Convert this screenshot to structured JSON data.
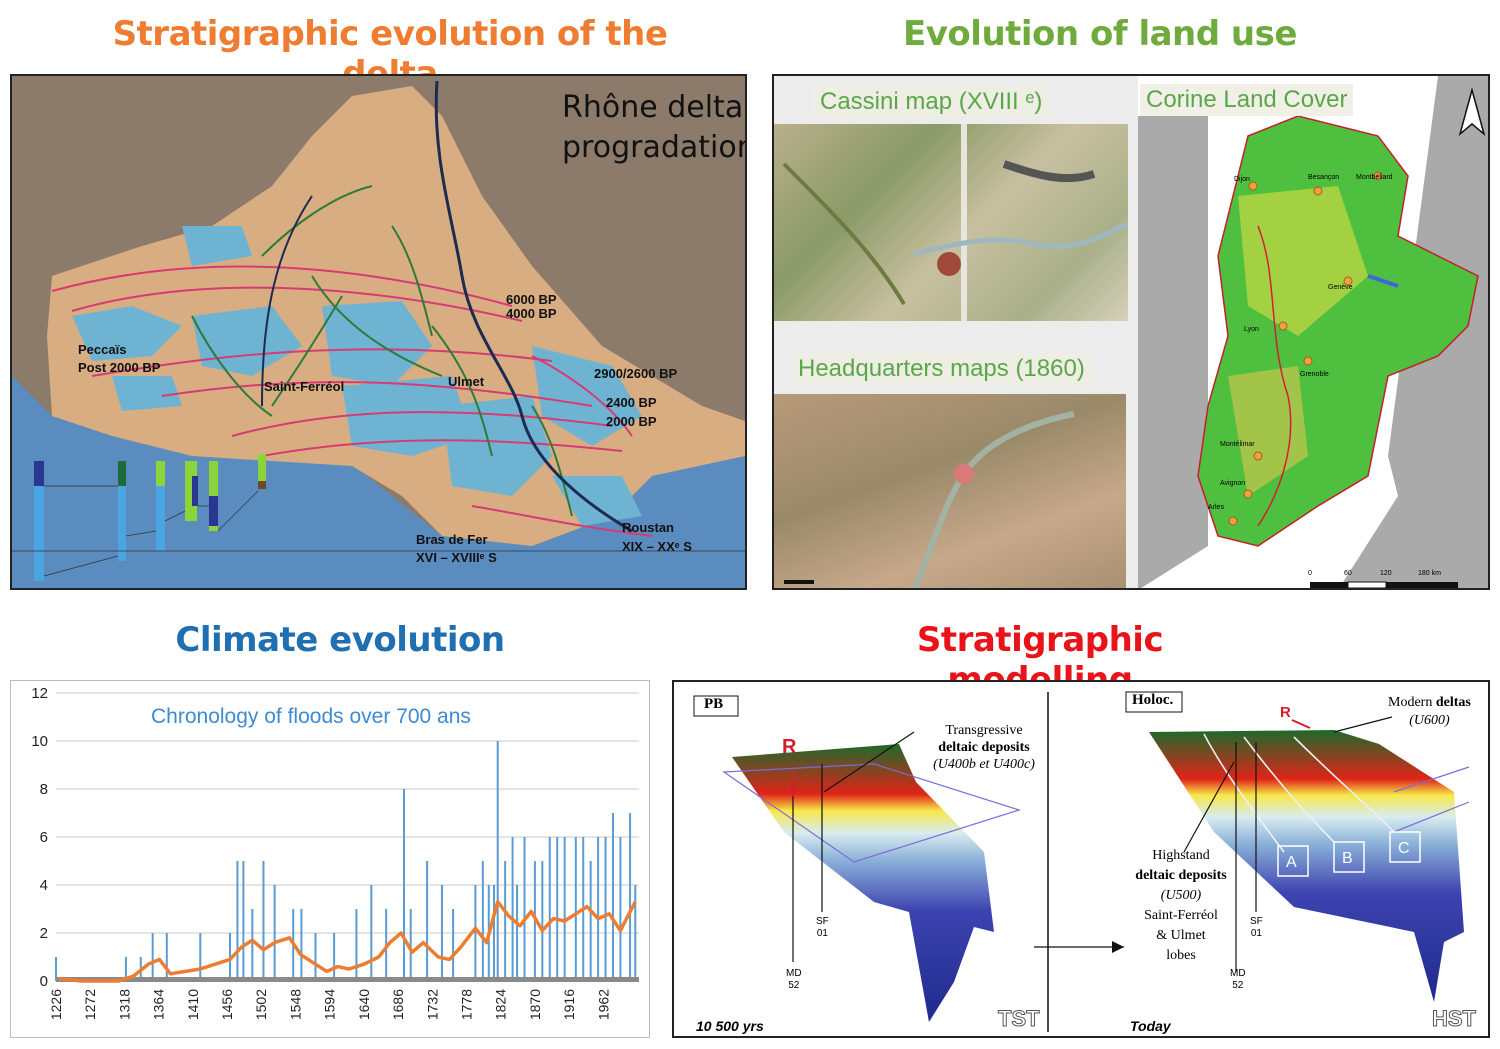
{
  "titles": {
    "strat_evolution": "Stratigraphic evolution of the delta",
    "land_use": "Evolution of land use",
    "climate": "Climate evolution",
    "modelling": "Stratigraphic modelling"
  },
  "colors": {
    "strat_evolution": "#ee7d31",
    "land_use": "#6eab3c",
    "climate": "#1f6fb1",
    "modelling": "#e8141a",
    "flood_bars": "#5b9bd5",
    "flood_trend": "#ed7d31"
  },
  "delta_map": {
    "title_line1": "Rhône delta",
    "title_line2": "progradation",
    "labels": {
      "bp_6000": "6000 BP",
      "bp_4000": "4000 BP",
      "peccais": "Peccaïs",
      "post2000": "Post 2000 BP",
      "saint_ferreol": "Saint-Ferréol",
      "ulmet": "Ulmet",
      "bp_2900": "2900/2600 BP",
      "bp_2400": "2400 BP",
      "bp_2000": "2000 BP",
      "bras_de_fer": "Bras de Fer",
      "bras_period": "XVI – XVIIIᵉ S",
      "roustan": "Roustan",
      "roustan_period": "XIX – XXᵉ S"
    }
  },
  "land_use": {
    "cassini": "Cassini map (XVIII ᵉ)",
    "headquarters": "Headquarters maps (1860)",
    "corine": "Corine Land Cover",
    "cities": [
      "Dijon",
      "Besançon",
      "Montbéliard",
      "Genève",
      "Lyon",
      "Grenoble",
      "Montélimar",
      "Avignon",
      "Arles"
    ],
    "scale": [
      "0",
      "60",
      "120",
      "180 km"
    ]
  },
  "chart_data": {
    "type": "bar",
    "title": "Chronology of floods over 700 ans",
    "xlabel": "",
    "ylabel": "",
    "ylim": [
      0,
      12
    ],
    "yticks": [
      0,
      2,
      4,
      6,
      8,
      10,
      12
    ],
    "xlim": [
      1226,
      2010
    ],
    "xticks": [
      1226,
      1272,
      1318,
      1364,
      1410,
      1456,
      1502,
      1548,
      1594,
      1640,
      1686,
      1732,
      1778,
      1824,
      1870,
      1916,
      1962
    ],
    "peaks": [
      {
        "x": 1226,
        "y": 1
      },
      {
        "x": 1320,
        "y": 1
      },
      {
        "x": 1340,
        "y": 1
      },
      {
        "x": 1356,
        "y": 2
      },
      {
        "x": 1375,
        "y": 2
      },
      {
        "x": 1420,
        "y": 2
      },
      {
        "x": 1460,
        "y": 2
      },
      {
        "x": 1470,
        "y": 5
      },
      {
        "x": 1478,
        "y": 5
      },
      {
        "x": 1490,
        "y": 3
      },
      {
        "x": 1505,
        "y": 5
      },
      {
        "x": 1520,
        "y": 4
      },
      {
        "x": 1545,
        "y": 3
      },
      {
        "x": 1556,
        "y": 3
      },
      {
        "x": 1575,
        "y": 2
      },
      {
        "x": 1600,
        "y": 2
      },
      {
        "x": 1630,
        "y": 3
      },
      {
        "x": 1650,
        "y": 4
      },
      {
        "x": 1670,
        "y": 3
      },
      {
        "x": 1694,
        "y": 8
      },
      {
        "x": 1703,
        "y": 3
      },
      {
        "x": 1725,
        "y": 5
      },
      {
        "x": 1745,
        "y": 4
      },
      {
        "x": 1760,
        "y": 3
      },
      {
        "x": 1790,
        "y": 4
      },
      {
        "x": 1800,
        "y": 5
      },
      {
        "x": 1808,
        "y": 4
      },
      {
        "x": 1815,
        "y": 4
      },
      {
        "x": 1820,
        "y": 10
      },
      {
        "x": 1830,
        "y": 5
      },
      {
        "x": 1840,
        "y": 6
      },
      {
        "x": 1846,
        "y": 4
      },
      {
        "x": 1856,
        "y": 6
      },
      {
        "x": 1870,
        "y": 5
      },
      {
        "x": 1880,
        "y": 5
      },
      {
        "x": 1890,
        "y": 6
      },
      {
        "x": 1900,
        "y": 6
      },
      {
        "x": 1910,
        "y": 6
      },
      {
        "x": 1925,
        "y": 6
      },
      {
        "x": 1935,
        "y": 6
      },
      {
        "x": 1945,
        "y": 5
      },
      {
        "x": 1955,
        "y": 6
      },
      {
        "x": 1965,
        "y": 6
      },
      {
        "x": 1975,
        "y": 7
      },
      {
        "x": 1985,
        "y": 6
      },
      {
        "x": 1998,
        "y": 7
      },
      {
        "x": 2005,
        "y": 4
      }
    ],
    "trend": [
      [
        1230,
        0.1
      ],
      [
        1260,
        0.0
      ],
      [
        1290,
        0.0
      ],
      [
        1310,
        0.0
      ],
      [
        1330,
        0.2
      ],
      [
        1350,
        0.7
      ],
      [
        1365,
        0.9
      ],
      [
        1380,
        0.3
      ],
      [
        1400,
        0.4
      ],
      [
        1420,
        0.5
      ],
      [
        1440,
        0.7
      ],
      [
        1460,
        0.9
      ],
      [
        1475,
        1.4
      ],
      [
        1490,
        1.7
      ],
      [
        1505,
        1.3
      ],
      [
        1520,
        1.6
      ],
      [
        1540,
        1.8
      ],
      [
        1555,
        1.1
      ],
      [
        1570,
        0.8
      ],
      [
        1590,
        0.4
      ],
      [
        1605,
        0.6
      ],
      [
        1620,
        0.5
      ],
      [
        1640,
        0.7
      ],
      [
        1660,
        1.0
      ],
      [
        1675,
        1.6
      ],
      [
        1690,
        2.0
      ],
      [
        1705,
        1.2
      ],
      [
        1720,
        1.6
      ],
      [
        1740,
        1.0
      ],
      [
        1755,
        0.9
      ],
      [
        1770,
        1.4
      ],
      [
        1790,
        2.2
      ],
      [
        1805,
        1.6
      ],
      [
        1820,
        3.3
      ],
      [
        1835,
        2.7
      ],
      [
        1850,
        2.3
      ],
      [
        1865,
        2.9
      ],
      [
        1880,
        2.1
      ],
      [
        1895,
        2.6
      ],
      [
        1910,
        2.5
      ],
      [
        1925,
        2.8
      ],
      [
        1940,
        3.1
      ],
      [
        1955,
        2.6
      ],
      [
        1970,
        2.8
      ],
      [
        1985,
        2.1
      ],
      [
        1995,
        2.7
      ],
      [
        2005,
        3.3
      ]
    ]
  },
  "modelling": {
    "pb": "PB",
    "holoc": "Holoc.",
    "transgressive": "Transgressive",
    "deltaic_deposits": "deltaic deposits",
    "u400": "(U400b et U400c)",
    "r_label": "R",
    "sf": "SF",
    "sf_num": "01",
    "md": "MD",
    "md_num": "52",
    "years_left": "10 500 yrs",
    "today": "Today",
    "tst": "TST",
    "hst": "HST",
    "modern": "Modern",
    "deltas": "deltas",
    "u600": "(U600)",
    "highstand": "Highstand",
    "u500": "(U500)",
    "sf_lobes": "Saint-Ferréol",
    "ulmet_lobes": "& Ulmet",
    "lobes": "lobes",
    "box_a": "A",
    "box_b": "B",
    "box_c": "C"
  }
}
